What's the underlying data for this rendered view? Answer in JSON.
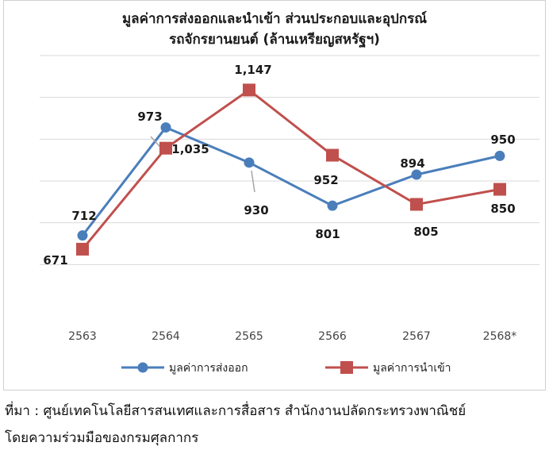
{
  "chart_data": {
    "type": "line",
    "title_lines": [
      "มูลค่าการส่งออกและนำเข้า ส่วนประกอบและอุปกรณ์",
      "รถจักรยานยนต์ (ล้านเหรียญสหรัฐฯ)"
    ],
    "categories": [
      "2563",
      "2564",
      "2565",
      "2566",
      "2567",
      "2568*"
    ],
    "ylim": [
      500,
      1250
    ],
    "grid": true,
    "legend_position": "bottom",
    "series": [
      {
        "name": "มูลค่าการส่งออก",
        "color": "#4a7ebb",
        "marker": "circle",
        "values": [
          712,
          1035,
          930,
          801,
          894,
          950
        ],
        "labels": [
          "712",
          "1,035",
          "930",
          "801",
          "894",
          "950"
        ]
      },
      {
        "name": "มูลค่าการนำเข้า",
        "color": "#c0504d",
        "marker": "square",
        "values": [
          671,
          973,
          1147,
          952,
          805,
          850
        ],
        "labels": [
          "671",
          "973",
          "1,147",
          "952",
          "805",
          "850"
        ]
      }
    ]
  },
  "source": {
    "line1": "ที่มา : ศูนย์เทคโนโลยีสารสนเทศและการสื่อสาร สำนักงานปลัดกระทรวงพาณิชย์",
    "line2": "โดยความร่วมมือของกรมศุลกากร"
  }
}
